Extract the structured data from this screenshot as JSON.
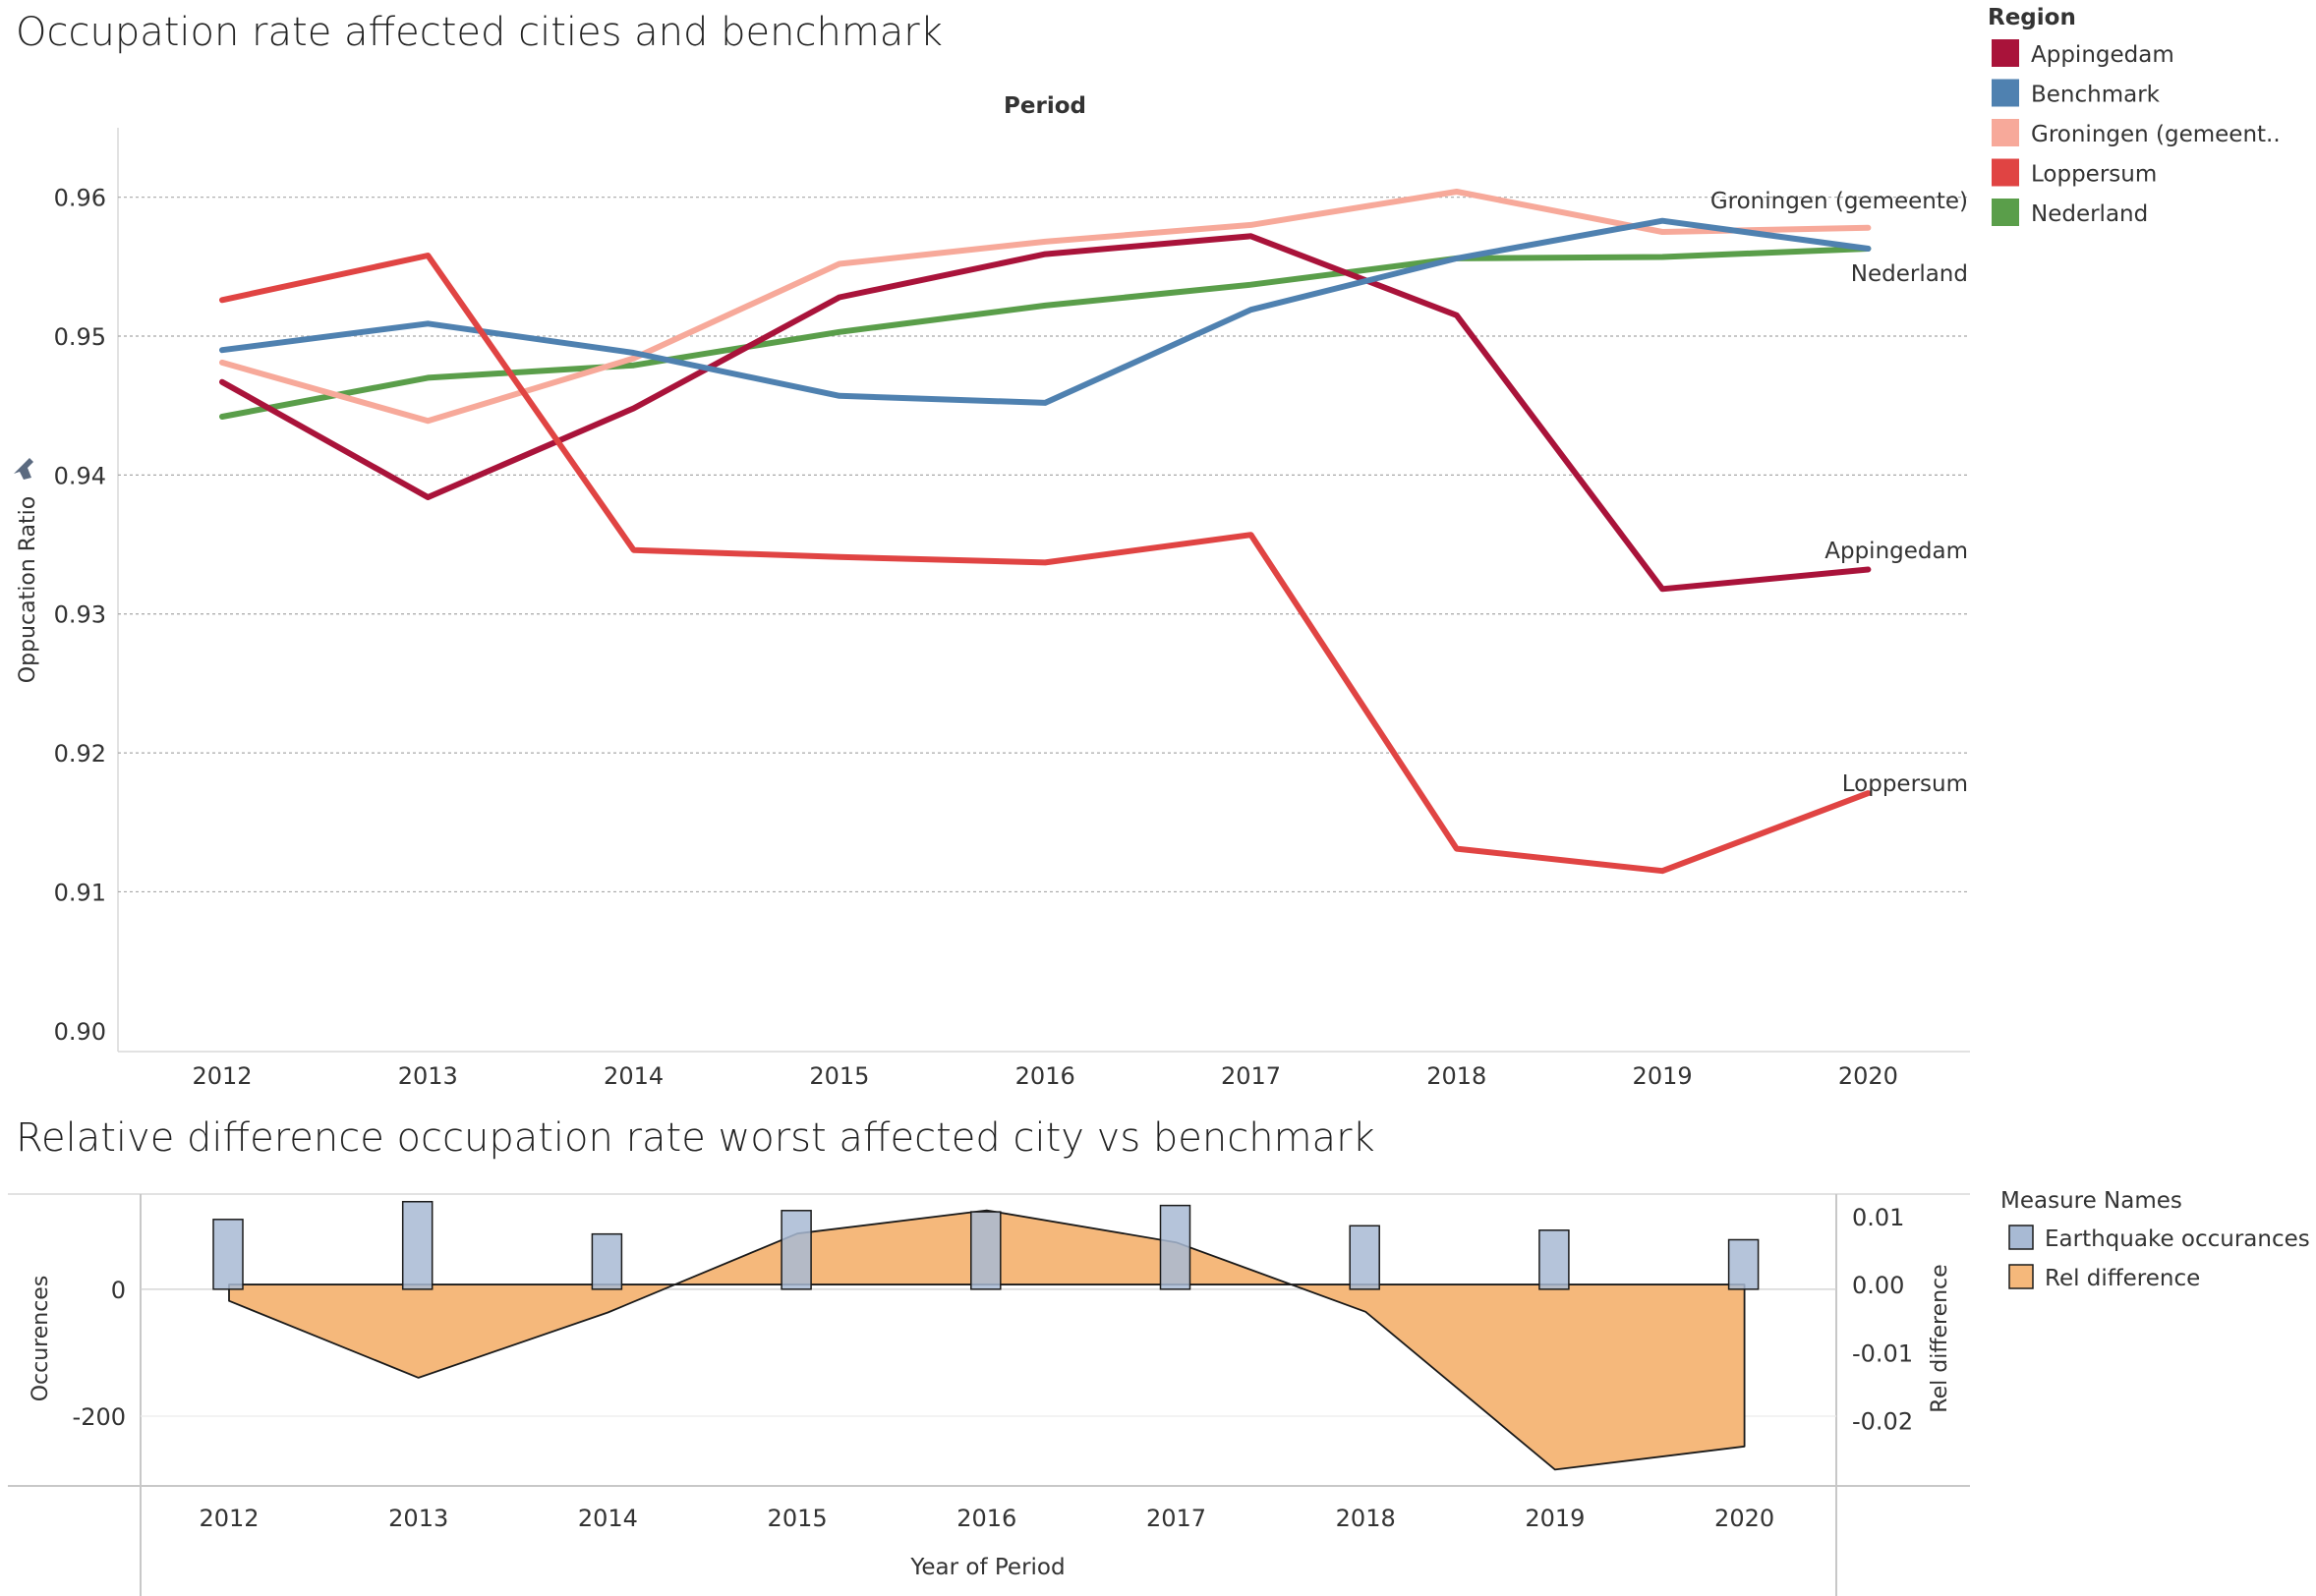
{
  "top_title": "Occupation rate affected cities and benchmark",
  "bottom_title": "Relative difference occupation rate worst affected city vs benchmark",
  "legend1": {
    "title": "Region",
    "items": [
      {
        "label": "Appingedam",
        "color": "#a9133a"
      },
      {
        "label": "Benchmark",
        "color": "#4f81b0"
      },
      {
        "label": "Groningen (gemeent..",
        "color": "#f7a99a"
      },
      {
        "label": "Loppersum",
        "color": "#e04443"
      },
      {
        "label": "Nederland",
        "color": "#5a9e4a"
      }
    ]
  },
  "legend2": {
    "title": "Measure Names",
    "items": [
      {
        "label": "Earthquake occurances",
        "color": "#a8bad4"
      },
      {
        "label": "Rel difference",
        "color": "#f5b87b"
      }
    ]
  },
  "chart_data": [
    {
      "type": "line",
      "title": "Occupation rate affected cities and benchmark",
      "header": "Period",
      "ylabel": "Oppucation Ratio",
      "x": [
        "2012",
        "2013",
        "2014",
        "2015",
        "2016",
        "2017",
        "2018",
        "2019",
        "2020"
      ],
      "ylim": [
        0.8985,
        0.965
      ],
      "yticks": [
        "0.90",
        "0.91",
        "0.92",
        "0.93",
        "0.94",
        "0.95",
        "0.96"
      ],
      "gridlines": true,
      "series": [
        {
          "name": "Appingedam",
          "color": "#a9133a",
          "label": "Appingedam",
          "values": [
            0.9467,
            0.9384,
            0.9448,
            0.9528,
            0.9559,
            0.9572,
            0.9515,
            0.9318,
            0.9332
          ]
        },
        {
          "name": "Benchmark",
          "color": "#4f81b0",
          "label": "",
          "values": [
            0.949,
            0.9509,
            0.9488,
            0.9457,
            0.9452,
            0.9519,
            0.9556,
            0.9583,
            0.9563
          ]
        },
        {
          "name": "Groningen (gemeente)",
          "color": "#f7a99a",
          "label": "Groningen (gemeente)",
          "values": [
            0.9481,
            0.9439,
            0.9484,
            0.9552,
            0.9568,
            0.958,
            0.9604,
            0.9575,
            0.9578
          ]
        },
        {
          "name": "Loppersum",
          "color": "#e04443",
          "label": "Loppersum",
          "values": [
            0.9526,
            0.9558,
            0.9346,
            0.9341,
            0.9337,
            0.9357,
            0.9131,
            0.9115,
            0.9171
          ]
        },
        {
          "name": "Nederland",
          "color": "#5a9e4a",
          "label": "Nederland",
          "values": [
            0.9442,
            0.947,
            0.9479,
            0.9503,
            0.9522,
            0.9537,
            0.9556,
            0.9557,
            0.9563
          ]
        }
      ]
    },
    {
      "type": "bar",
      "title": "Relative difference occupation rate worst affected city vs benchmark",
      "xlabel": "Year of Period",
      "ylabel": "Occurences",
      "categories": [
        "2012",
        "2013",
        "2014",
        "2015",
        "2016",
        "2017",
        "2018",
        "2019",
        "2020"
      ],
      "ylim": [
        -310,
        150
      ],
      "yticks": [
        "0",
        "-200"
      ],
      "series": [
        {
          "name": "Earthquake occurances",
          "values": [
            110,
            138,
            87,
            124,
            122,
            132,
            100,
            93,
            78
          ]
        }
      ]
    },
    {
      "type": "area",
      "title": "Relative difference occupation rate worst affected city vs benchmark",
      "ylabel": "Rel difference",
      "categories": [
        "2012",
        "2013",
        "2014",
        "2015",
        "2016",
        "2017",
        "2018",
        "2019",
        "2020"
      ],
      "ylim": [
        -0.0296,
        0.0133
      ],
      "yticks": [
        "0.01",
        "0.00",
        "-0.01",
        "-0.02"
      ],
      "series": [
        {
          "name": "Rel difference",
          "values": [
            -0.0024,
            -0.0137,
            -0.0041,
            0.0075,
            0.0109,
            0.0062,
            -0.004,
            -0.0272,
            -0.0238
          ]
        }
      ]
    }
  ]
}
